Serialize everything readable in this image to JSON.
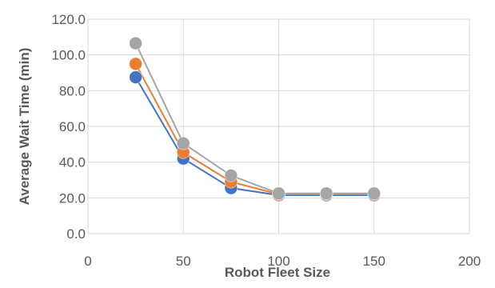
{
  "chart_data": {
    "type": "scatter",
    "title": "",
    "xlabel": "Robot Fleet Size",
    "ylabel": "Average Wait Time (min)",
    "xlim": [
      0,
      200
    ],
    "ylim": [
      0,
      120
    ],
    "x_ticks": [
      "0",
      "50",
      "100",
      "150",
      "200"
    ],
    "y_ticks": [
      "0.0",
      "20.0",
      "40.0",
      "60.0",
      "80.0",
      "100.0",
      "120.0"
    ],
    "grid": true,
    "legend": "none",
    "series": [
      {
        "color": "#4472c4",
        "points": [
          [
            25,
            87.5
          ],
          [
            50,
            42.0
          ],
          [
            75,
            25.5
          ],
          [
            100,
            21.5
          ],
          [
            125,
            21.5
          ],
          [
            150,
            21.5
          ]
        ]
      },
      {
        "color": "#ed7d31",
        "points": [
          [
            25,
            95.0
          ],
          [
            50,
            45.5
          ],
          [
            75,
            29.0
          ],
          [
            100,
            22.0
          ],
          [
            125,
            22.0
          ],
          [
            150,
            22.0
          ]
        ]
      },
      {
        "color": "#a5a5a5",
        "points": [
          [
            25,
            106.5
          ],
          [
            50,
            50.5
          ],
          [
            75,
            32.5
          ],
          [
            100,
            22.5
          ],
          [
            125,
            22.5
          ],
          [
            150,
            22.5
          ]
        ]
      }
    ]
  }
}
